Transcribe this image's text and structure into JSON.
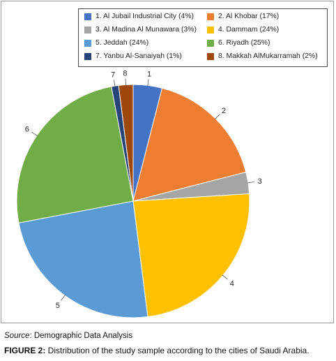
{
  "chart_data": {
    "type": "pie",
    "slices": [
      {
        "label": "1. Al Jubail Industrial City (4%)",
        "marker": "1",
        "value": 4,
        "color": "#4472C4"
      },
      {
        "label": "2. Al Khobar (17%)",
        "marker": "2",
        "value": 17,
        "color": "#ED7D31"
      },
      {
        "label": "3. Al Madina Al Munawara (3%)",
        "marker": "3",
        "value": 3,
        "color": "#A5A5A5"
      },
      {
        "label": "4. Dammam (24%)",
        "marker": "4",
        "value": 24,
        "color": "#FFC000"
      },
      {
        "label": "5. Jeddah (24%)",
        "marker": "5",
        "value": 24,
        "color": "#5B9BD5"
      },
      {
        "label": "6. Riyadh (25%)",
        "marker": "6",
        "value": 25,
        "color": "#70AD47"
      },
      {
        "label": "7. Yanbu Al-Sanaiyah (1%)",
        "marker": "7",
        "value": 1,
        "color": "#264478"
      },
      {
        "label": "8. Makkah AlMukarramah (2%)",
        "marker": "8",
        "value": 2,
        "color": "#9E480E"
      }
    ],
    "legend_position": "top"
  },
  "source": {
    "label": "Source",
    "text": ": Demographic Data Analysis"
  },
  "caption": {
    "label": "FIGURE 2:",
    "text": " Distribution of the study sample according to the cities of Saudi Arabia."
  }
}
